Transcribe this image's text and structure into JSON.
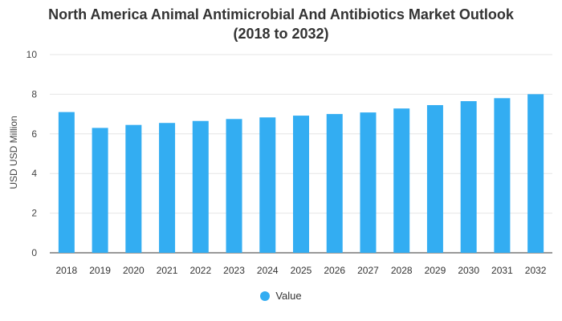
{
  "chart_data": {
    "type": "bar",
    "title_line1": "North America Animal Antimicrobial And Antibiotics Market Outlook",
    "title_line2": "(2018 to 2032)",
    "xlabel": "",
    "ylabel": "USD USD Million",
    "ylim": [
      0,
      10
    ],
    "yticks": [
      0,
      2,
      4,
      6,
      8,
      10
    ],
    "grid": true,
    "legend_position": "bottom-center",
    "categories": [
      "2018",
      "2019",
      "2020",
      "2021",
      "2022",
      "2023",
      "2024",
      "2025",
      "2026",
      "2027",
      "2028",
      "2029",
      "2030",
      "2031",
      "2032"
    ],
    "series": [
      {
        "name": "Value",
        "color": "#33adf2",
        "values": [
          7.1,
          6.3,
          6.45,
          6.55,
          6.65,
          6.75,
          6.83,
          6.92,
          7.0,
          7.08,
          7.28,
          7.45,
          7.65,
          7.8,
          8.0
        ]
      }
    ]
  }
}
